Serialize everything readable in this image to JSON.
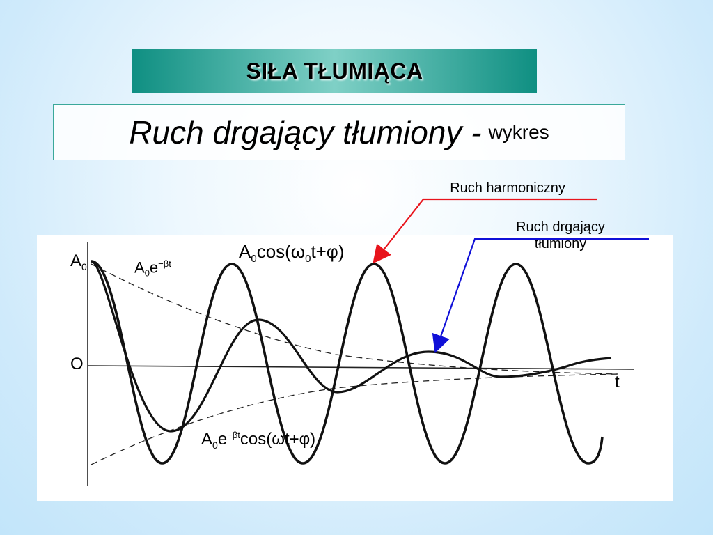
{
  "title": "SIŁA TŁUMIĄCA",
  "subtitle": {
    "main": "Ruch drgający tłumiony -",
    "small": "wykres"
  },
  "annotations": {
    "harmonic": "Ruch harmoniczny",
    "damped_line1": "Ruch drgający",
    "damped_line2": "tłumiony"
  },
  "graph_labels": {
    "a0": "A",
    "a0_sub": "0",
    "zero": "O",
    "t_axis": "t",
    "envelope": "A",
    "envelope_sub": "0",
    "envelope_exp": "e",
    "envelope_exp_sup": "−βt",
    "harmonic_eq": "A",
    "harmonic_eq_sub": "0",
    "harmonic_eq_rest": "cos(ω",
    "harmonic_eq_sub2": "0",
    "harmonic_eq_end": "t+φ)",
    "damped_eq": "A",
    "damped_eq_sub": "0",
    "damped_eq_exp": "e",
    "damped_eq_exp_sup": "−βt",
    "damped_eq_rest": "cos(ωt+φ)"
  },
  "colors": {
    "title_bar": "#0f8f82",
    "harmonic_arrow": "#e8141c",
    "damped_arrow": "#1010d8",
    "curve": "#111111"
  }
}
